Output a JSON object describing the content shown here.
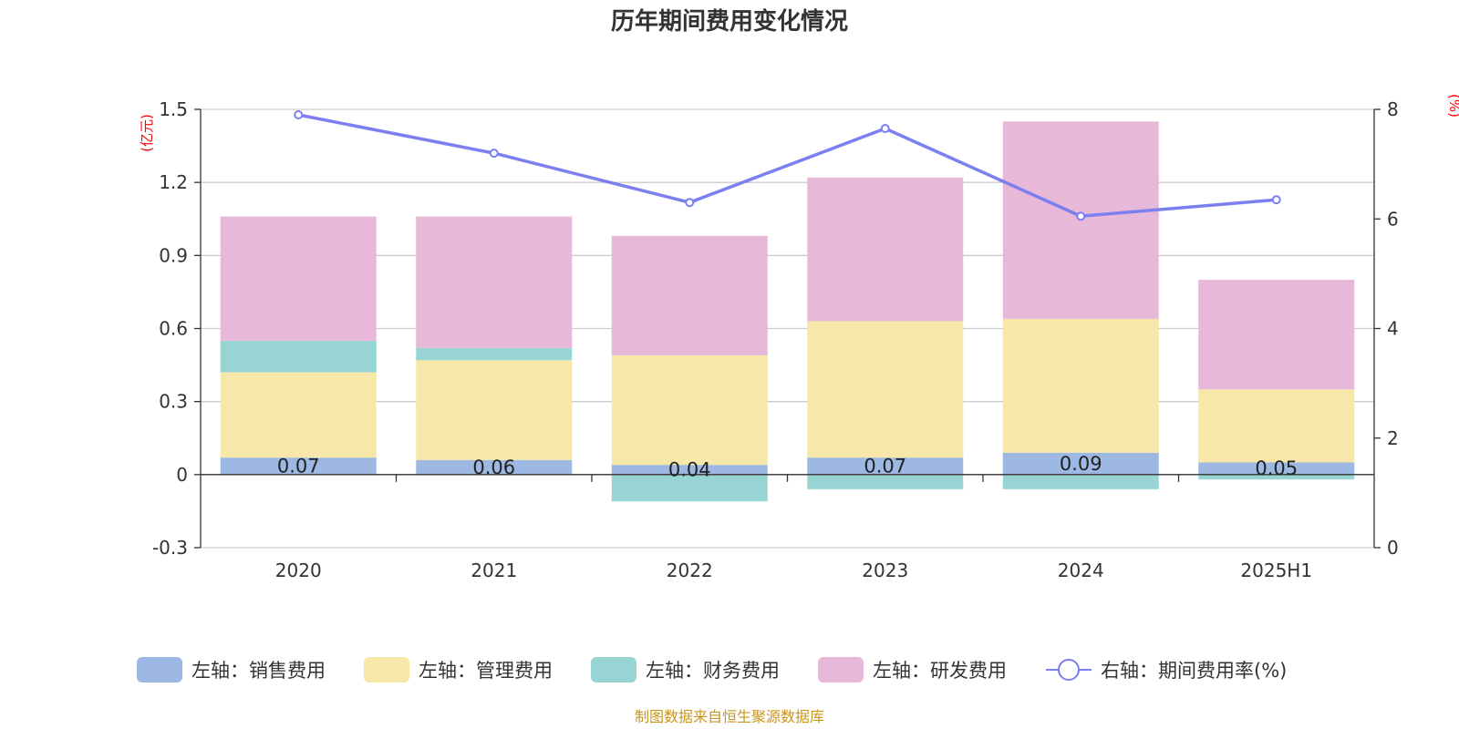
{
  "chart_data": {
    "type": "bar",
    "title": "历年期间费用变化情况",
    "categories": [
      "2020",
      "2021",
      "2022",
      "2023",
      "2024",
      "2025H1"
    ],
    "left_axis": {
      "unit_label": "(亿元)",
      "ylim": [
        -0.3,
        1.5
      ],
      "ticks": [
        "-0.3",
        "0",
        "0.3",
        "0.6",
        "0.9",
        "1.2",
        "1.5"
      ]
    },
    "right_axis": {
      "unit_label": "(%)",
      "ylim": [
        0,
        8
      ],
      "ticks": [
        "0",
        "2",
        "4",
        "6",
        "8"
      ]
    },
    "series": [
      {
        "name": "左轴：销售费用",
        "type": "bar",
        "axis": "left",
        "color": "#9db8e2",
        "values": [
          0.07,
          0.06,
          0.04,
          0.07,
          0.09,
          0.05
        ],
        "labels": [
          "0.07",
          "0.06",
          "0.04",
          "0.07",
          "0.09",
          "0.05"
        ]
      },
      {
        "name": "左轴：管理费用",
        "type": "bar",
        "axis": "left",
        "color": "#f7e7a8",
        "values": [
          0.35,
          0.41,
          0.45,
          0.56,
          0.55,
          0.3
        ]
      },
      {
        "name": "左轴：财务费用",
        "type": "bar",
        "axis": "left",
        "color": "#99d4d4",
        "values": [
          0.13,
          0.05,
          -0.11,
          -0.06,
          -0.06,
          -0.02
        ]
      },
      {
        "name": "左轴：研发费用",
        "type": "bar",
        "axis": "left",
        "color": "#e8b8d8",
        "values": [
          0.51,
          0.54,
          0.49,
          0.59,
          0.81,
          0.45
        ]
      },
      {
        "name": "右轴：期间费用率(%)",
        "type": "line",
        "axis": "right",
        "color": "#7b7ff0",
        "values": [
          7.9,
          7.2,
          6.3,
          7.65,
          6.05,
          6.35
        ]
      }
    ],
    "legend_position": "bottom",
    "grid": true
  },
  "source_note": "制图数据来自恒生聚源数据库"
}
